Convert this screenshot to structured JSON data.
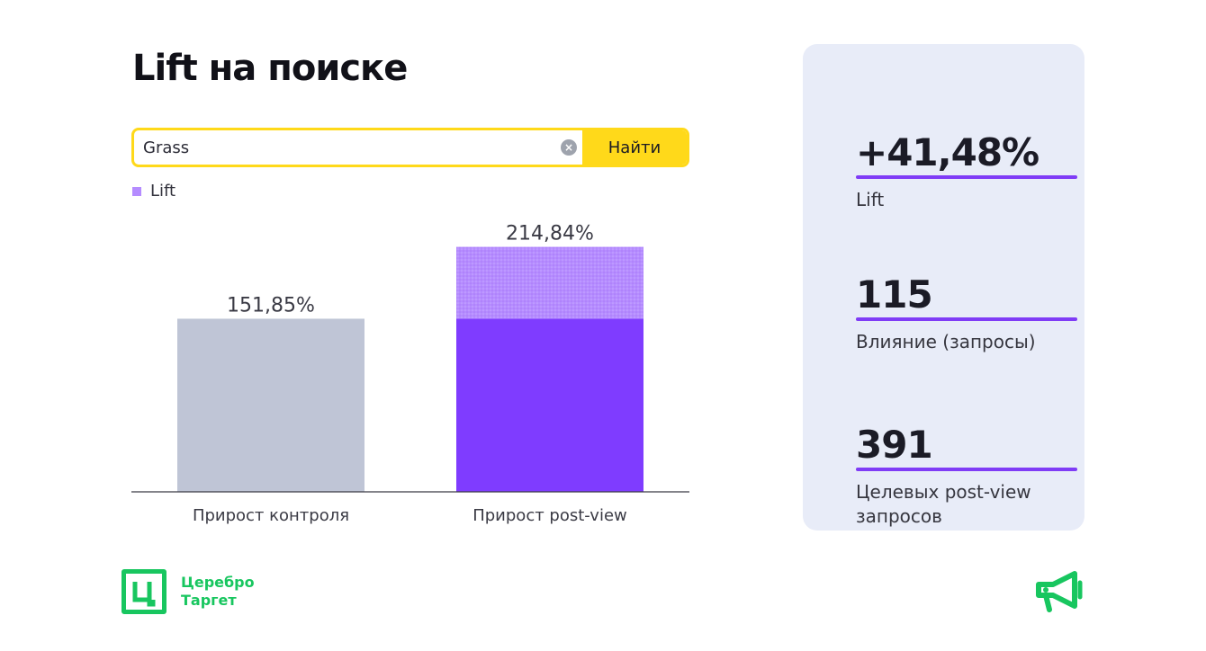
{
  "page_title": "Lift на поиске",
  "search": {
    "value": "Grass",
    "clear_icon": "clear-icon",
    "button_label": "Найти"
  },
  "legend": {
    "label": "Lift",
    "color": "#b58cff"
  },
  "chart_data": {
    "type": "bar",
    "categories": [
      "Прирост контроля",
      "Прирост post-view"
    ],
    "series": [
      {
        "name": "",
        "values": [
          151.85,
          151.85
        ],
        "colors": [
          "#bfc5d6",
          "#7f3cff"
        ]
      },
      {
        "name": "Lift",
        "values": [
          0,
          62.99
        ],
        "color": "#b58cff"
      }
    ],
    "totals": [
      151.85,
      214.84
    ],
    "data_labels": [
      "151,85%",
      "214,84%"
    ],
    "ylim": [
      0,
      250
    ],
    "xlabel": "",
    "ylabel": "",
    "title": "",
    "grid": false
  },
  "stats": [
    {
      "value": "+41,48%",
      "label": "Lift"
    },
    {
      "value": "115",
      "label": "Влияние (запросы)"
    },
    {
      "value": "391",
      "label": "Целевых post-view запросов"
    }
  ],
  "brand": {
    "logo_icon": "cerebro-logo-icon",
    "name_line1": "Церебро",
    "name_line2": "Таргет",
    "color": "#18c65f",
    "accent": "#7f3cf6",
    "megaphone_icon": "megaphone-icon"
  }
}
